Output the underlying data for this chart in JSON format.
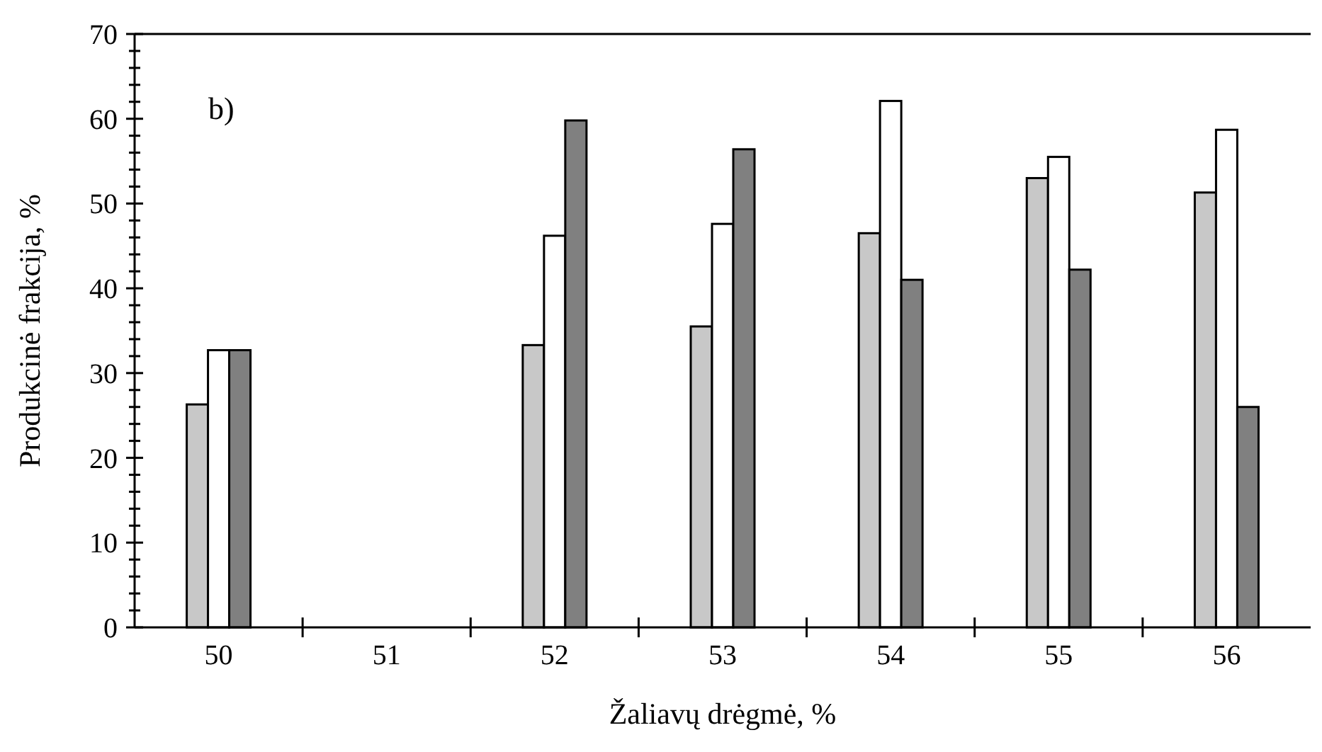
{
  "chart_data": {
    "type": "bar",
    "xlabel": "Žaliavų drėgmė, %",
    "ylabel": "Produkcinė frakcija, %",
    "annotations": [
      "b)"
    ],
    "categories": [
      "50",
      "51",
      "52",
      "53",
      "54",
      "55",
      "56"
    ],
    "series": [
      {
        "color": "#c8c8c8",
        "values": [
          26.3,
          null,
          33.3,
          35.5,
          46.5,
          53.0,
          51.3
        ]
      },
      {
        "color": "#ffffff",
        "values": [
          32.7,
          null,
          46.2,
          47.6,
          62.1,
          55.5,
          58.7
        ]
      },
      {
        "color": "#808080",
        "values": [
          32.7,
          null,
          59.8,
          56.4,
          41.0,
          42.2,
          26.0
        ]
      }
    ],
    "ylim": [
      0,
      70
    ],
    "yticks": [
      0,
      {
        "value": 2,
        "label": null
      },
      {
        "value": 4,
        "label": null
      },
      {
        "value": 6,
        "label": null
      },
      {
        "value": 8,
        "label": null
      },
      10,
      {
        "value": 12,
        "label": null
      },
      {
        "value": 14,
        "label": null
      },
      {
        "value": 16,
        "label": null
      },
      {
        "value": 18,
        "label": null
      },
      20,
      {
        "value": 22,
        "label": null
      },
      {
        "value": 24,
        "label": null
      },
      {
        "value": 26,
        "label": null
      },
      {
        "value": 28,
        "label": null
      },
      30,
      {
        "value": 32,
        "label": null
      },
      {
        "value": 34,
        "label": null
      },
      {
        "value": 36,
        "label": null
      },
      {
        "value": 38,
        "label": null
      },
      40,
      {
        "value": 42,
        "label": null
      },
      {
        "value": 44,
        "label": null
      },
      {
        "value": 46,
        "label": null
      },
      {
        "value": 48,
        "label": null
      },
      50,
      {
        "value": 52,
        "label": null
      },
      {
        "value": 54,
        "label": null
      },
      {
        "value": 56,
        "label": null
      },
      {
        "value": 58,
        "label": null
      },
      60,
      {
        "value": 62,
        "label": null
      },
      {
        "value": 64,
        "label": null
      },
      {
        "value": 66,
        "label": null
      },
      {
        "value": 68,
        "label": null
      },
      70
    ],
    "grid": false
  }
}
